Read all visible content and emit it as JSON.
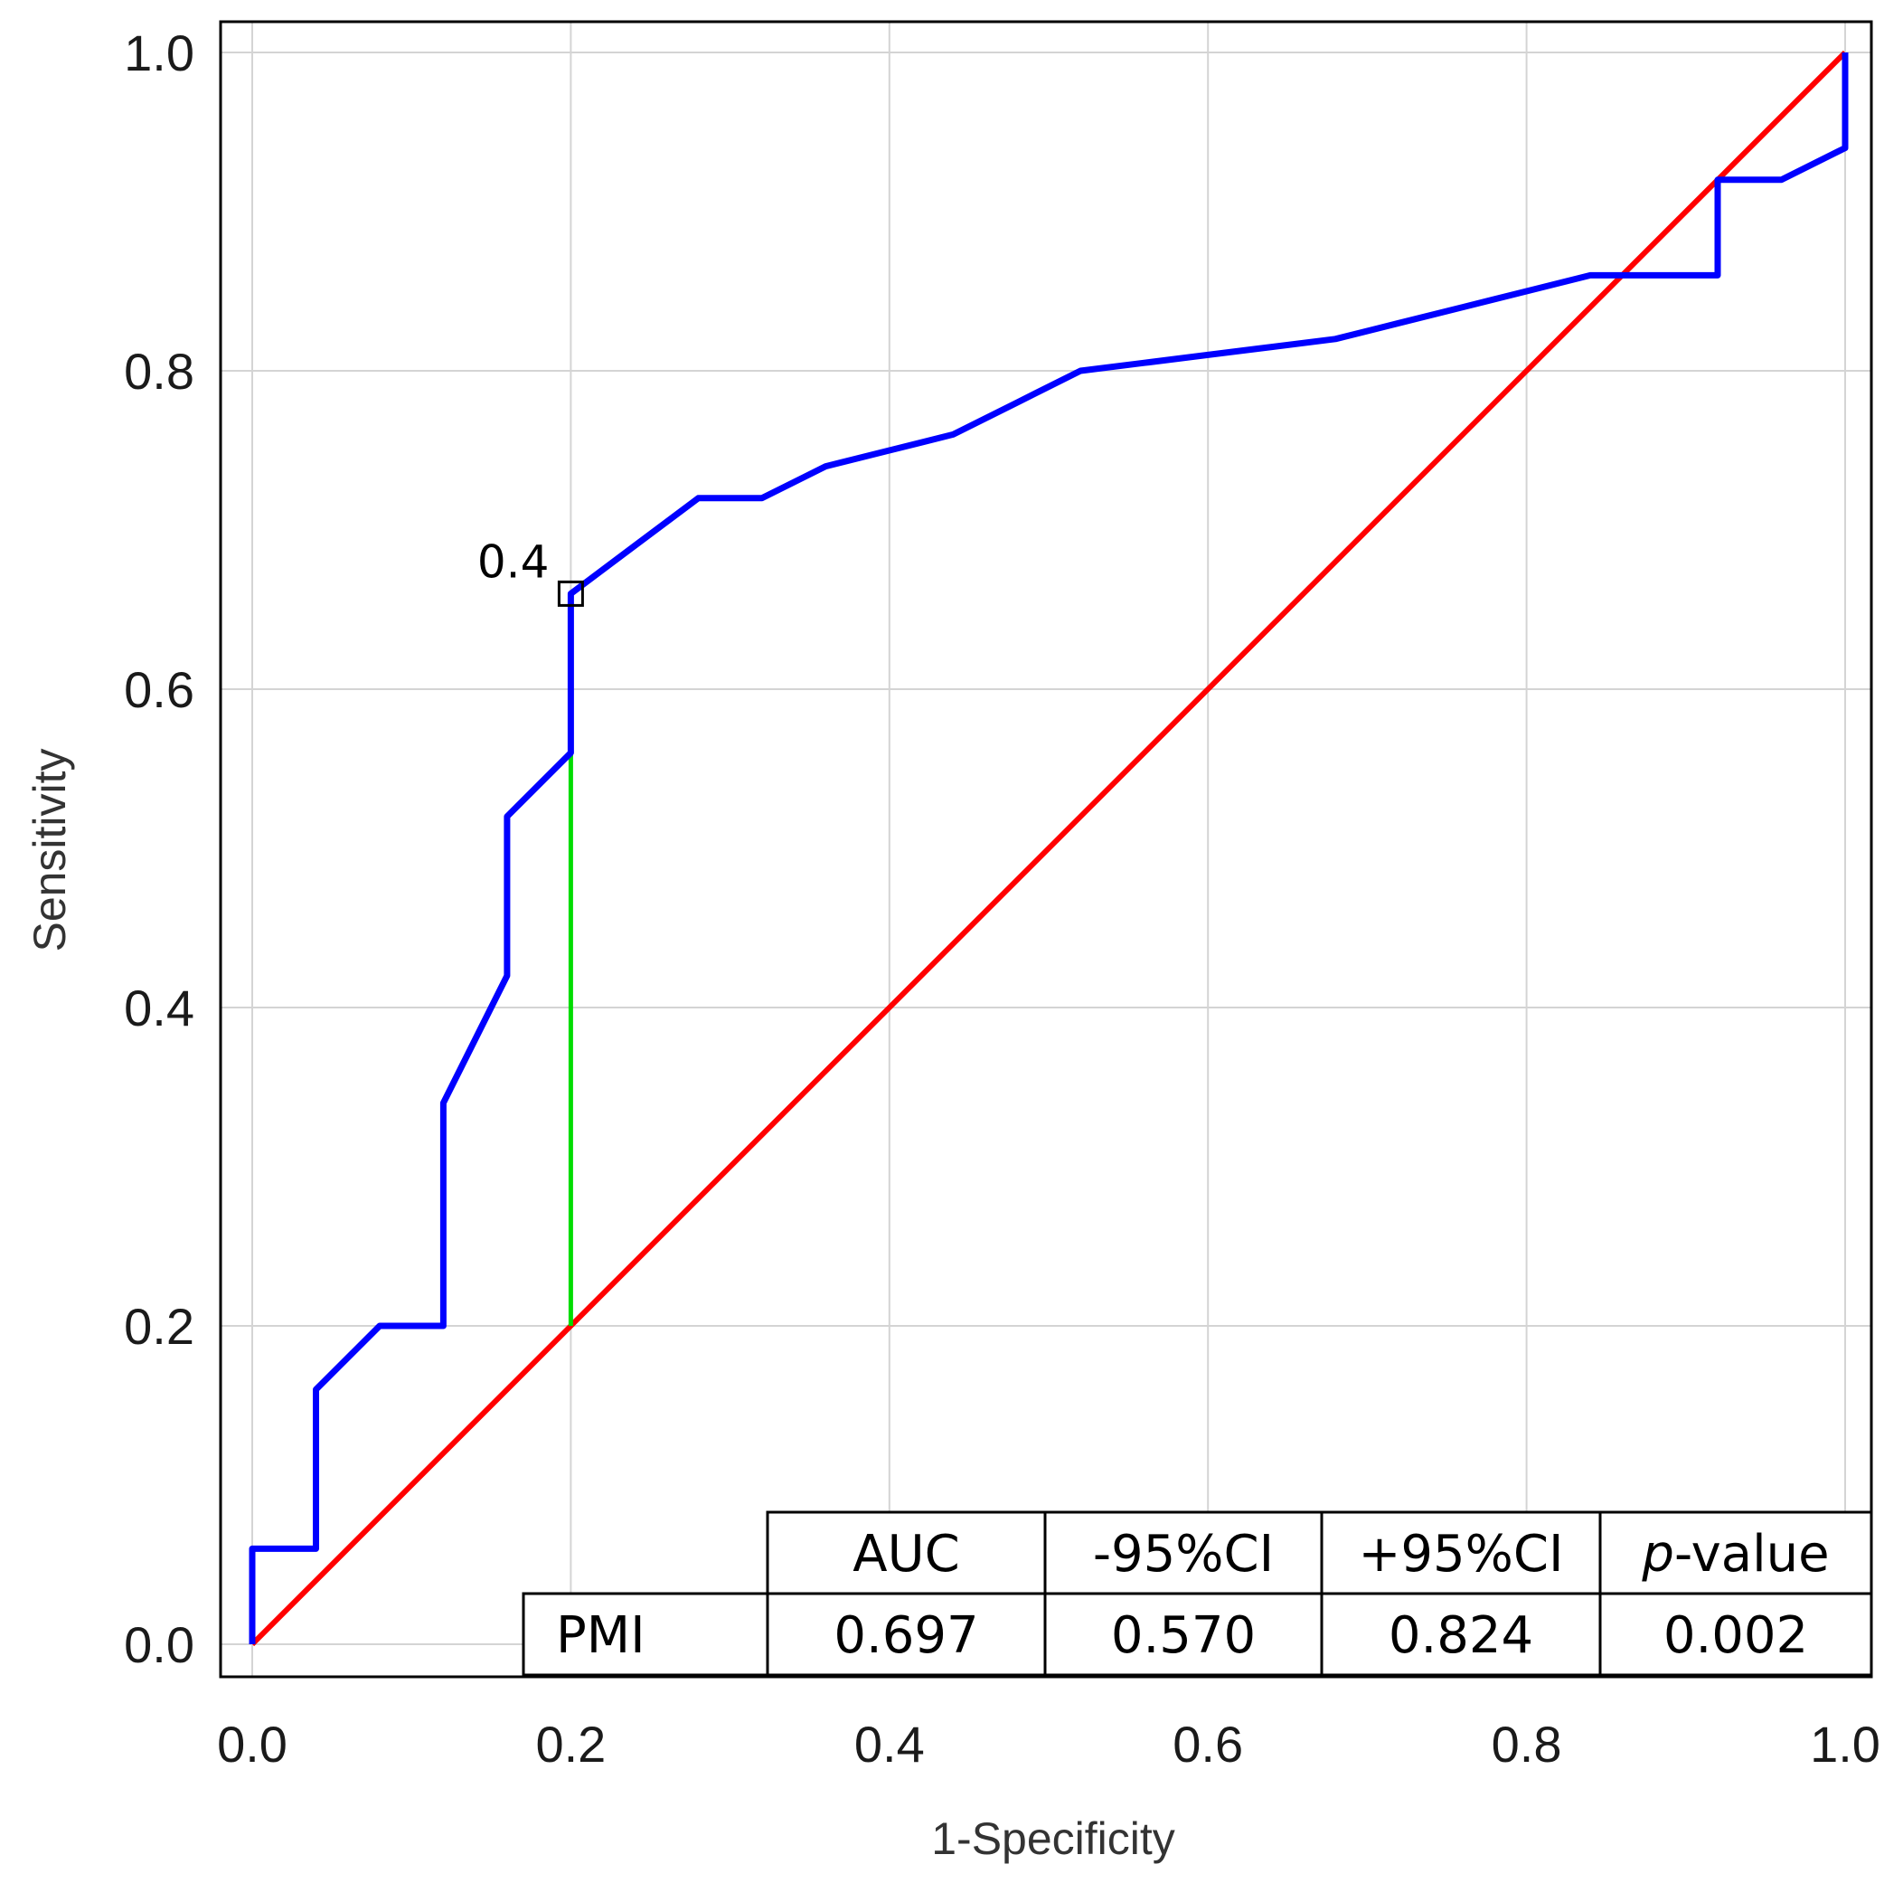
{
  "chart_data": {
    "type": "line",
    "xlabel": "1-Specificity",
    "ylabel": "Sensitivity",
    "xlim": [
      0,
      1
    ],
    "ylim": [
      0,
      1
    ],
    "x_ticks": [
      "0.0",
      "0.2",
      "0.4",
      "0.6",
      "0.8",
      "1.0"
    ],
    "y_ticks": [
      "0.0",
      "0.2",
      "0.4",
      "0.6",
      "0.8",
      "1.0"
    ],
    "grid": true,
    "series": [
      {
        "style": "roc-curve",
        "color": "#0000ff",
        "points": [
          [
            0.0,
            0.0
          ],
          [
            0.0,
            0.06
          ],
          [
            0.04,
            0.06
          ],
          [
            0.04,
            0.16
          ],
          [
            0.08,
            0.2
          ],
          [
            0.12,
            0.2
          ],
          [
            0.12,
            0.34
          ],
          [
            0.16,
            0.42
          ],
          [
            0.16,
            0.52
          ],
          [
            0.2,
            0.56
          ],
          [
            0.2,
            0.66
          ],
          [
            0.24,
            0.69
          ],
          [
            0.28,
            0.72
          ],
          [
            0.32,
            0.72
          ],
          [
            0.36,
            0.74
          ],
          [
            0.4,
            0.75
          ],
          [
            0.44,
            0.76
          ],
          [
            0.48,
            0.78
          ],
          [
            0.52,
            0.8
          ],
          [
            0.56,
            0.805
          ],
          [
            0.6,
            0.81
          ],
          [
            0.64,
            0.815
          ],
          [
            0.68,
            0.82
          ],
          [
            0.72,
            0.83
          ],
          [
            0.76,
            0.84
          ],
          [
            0.8,
            0.85
          ],
          [
            0.84,
            0.86
          ],
          [
            0.92,
            0.86
          ],
          [
            0.92,
            0.92
          ],
          [
            0.96,
            0.92
          ],
          [
            1.0,
            0.94
          ],
          [
            1.0,
            1.0
          ]
        ]
      },
      {
        "style": "reference-diagonal",
        "color": "#ff0000",
        "points": [
          [
            0.0,
            0.0
          ],
          [
            1.0,
            1.0
          ]
        ]
      }
    ],
    "cutoff": {
      "label": "0.4",
      "x": 0.2,
      "y": 0.66,
      "youden_line_from": 0.2,
      "youden_color": "#00dd00"
    },
    "table": {
      "headers": [
        "AUC",
        "-95%CI",
        "+95%CI",
        "p-value"
      ],
      "rows": [
        {
          "label": "PMI",
          "values": [
            "0.697",
            "0.570",
            "0.824",
            "0.002"
          ]
        }
      ]
    }
  }
}
